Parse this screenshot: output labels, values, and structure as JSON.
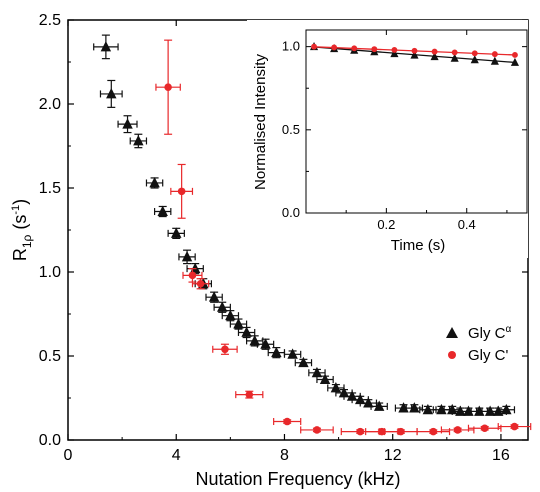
{
  "chart_data": [
    {
      "id": "main",
      "type": "scatter",
      "xlabel": "Nutation Frequency (kHz)",
      "ylabel_main": "R",
      "ylabel_sub": "1ρ",
      "ylabel_unit_open": " (s",
      "ylabel_unit_sup": "-1",
      "ylabel_unit_close": ")",
      "xlim": [
        0,
        17
      ],
      "ylim": [
        0,
        2.5
      ],
      "xticks": [
        0,
        4,
        8,
        12,
        16
      ],
      "xtick_labels": [
        "0",
        "4",
        "8",
        "12",
        "16"
      ],
      "yticks": [
        0.0,
        0.5,
        1.0,
        1.5,
        2.0,
        2.5
      ],
      "ytick_labels": [
        "0.0",
        "0.5",
        "1.0",
        "1.5",
        "2.0",
        "2.5"
      ],
      "legend_position": "lower-right",
      "series": [
        {
          "name": "Gly C",
          "name_sup": "α",
          "color": "#111111",
          "marker": "triangle",
          "points": [
            {
              "x": 1.4,
              "y": 2.34,
              "xerr": 0.45,
              "yerr": 0.07
            },
            {
              "x": 1.6,
              "y": 2.06,
              "xerr": 0.4,
              "yerr": 0.08
            },
            {
              "x": 2.2,
              "y": 1.88,
              "xerr": 0.35,
              "yerr": 0.05
            },
            {
              "x": 2.6,
              "y": 1.78,
              "xerr": 0.3,
              "yerr": 0.04
            },
            {
              "x": 3.2,
              "y": 1.53,
              "xerr": 0.3,
              "yerr": 0.03
            },
            {
              "x": 3.5,
              "y": 1.36,
              "xerr": 0.3,
              "yerr": 0.03
            },
            {
              "x": 4.0,
              "y": 1.23,
              "xerr": 0.3,
              "yerr": 0.03
            },
            {
              "x": 4.4,
              "y": 1.09,
              "xerr": 0.3,
              "yerr": 0.04
            },
            {
              "x": 4.7,
              "y": 1.02,
              "xerr": 0.3,
              "yerr": 0.03
            },
            {
              "x": 5.0,
              "y": 0.93,
              "xerr": 0.3,
              "yerr": 0.03
            },
            {
              "x": 5.4,
              "y": 0.85,
              "xerr": 0.3,
              "yerr": 0.03
            },
            {
              "x": 5.7,
              "y": 0.79,
              "xerr": 0.3,
              "yerr": 0.03
            },
            {
              "x": 6.0,
              "y": 0.74,
              "xerr": 0.3,
              "yerr": 0.03
            },
            {
              "x": 6.3,
              "y": 0.69,
              "xerr": 0.3,
              "yerr": 0.03
            },
            {
              "x": 6.6,
              "y": 0.64,
              "xerr": 0.3,
              "yerr": 0.03
            },
            {
              "x": 6.9,
              "y": 0.59,
              "xerr": 0.3,
              "yerr": 0.03
            },
            {
              "x": 7.3,
              "y": 0.57,
              "xerr": 0.3,
              "yerr": 0.03
            },
            {
              "x": 7.7,
              "y": 0.52,
              "xerr": 0.3,
              "yerr": 0.03
            },
            {
              "x": 8.3,
              "y": 0.51,
              "xerr": 0.3,
              "yerr": 0.02
            },
            {
              "x": 8.7,
              "y": 0.46,
              "xerr": 0.3,
              "yerr": 0.02
            },
            {
              "x": 9.2,
              "y": 0.4,
              "xerr": 0.3,
              "yerr": 0.02
            },
            {
              "x": 9.5,
              "y": 0.36,
              "xerr": 0.3,
              "yerr": 0.02
            },
            {
              "x": 9.9,
              "y": 0.31,
              "xerr": 0.3,
              "yerr": 0.02
            },
            {
              "x": 10.2,
              "y": 0.28,
              "xerr": 0.3,
              "yerr": 0.02
            },
            {
              "x": 10.5,
              "y": 0.26,
              "xerr": 0.3,
              "yerr": 0.02
            },
            {
              "x": 10.8,
              "y": 0.24,
              "xerr": 0.3,
              "yerr": 0.02
            },
            {
              "x": 11.1,
              "y": 0.22,
              "xerr": 0.3,
              "yerr": 0.02
            },
            {
              "x": 11.5,
              "y": 0.2,
              "xerr": 0.3,
              "yerr": 0.02
            },
            {
              "x": 12.4,
              "y": 0.19,
              "xerr": 0.3,
              "yerr": 0.02
            },
            {
              "x": 12.8,
              "y": 0.19,
              "xerr": 0.3,
              "yerr": 0.02
            },
            {
              "x": 13.3,
              "y": 0.18,
              "xerr": 0.3,
              "yerr": 0.02
            },
            {
              "x": 13.8,
              "y": 0.18,
              "xerr": 0.3,
              "yerr": 0.02
            },
            {
              "x": 14.2,
              "y": 0.18,
              "xerr": 0.3,
              "yerr": 0.02
            },
            {
              "x": 14.5,
              "y": 0.17,
              "xerr": 0.3,
              "yerr": 0.02
            },
            {
              "x": 14.8,
              "y": 0.17,
              "xerr": 0.3,
              "yerr": 0.02
            },
            {
              "x": 15.2,
              "y": 0.17,
              "xerr": 0.3,
              "yerr": 0.02
            },
            {
              "x": 15.6,
              "y": 0.17,
              "xerr": 0.3,
              "yerr": 0.02
            },
            {
              "x": 15.9,
              "y": 0.17,
              "xerr": 0.3,
              "yerr": 0.02
            },
            {
              "x": 16.2,
              "y": 0.18,
              "xerr": 0.3,
              "yerr": 0.02
            }
          ]
        },
        {
          "name": "Gly C'",
          "color": "#e8282b",
          "marker": "circle",
          "points": [
            {
              "x": 3.7,
              "y": 2.1,
              "xerr": 0.45,
              "yerr": 0.28
            },
            {
              "x": 4.2,
              "y": 1.48,
              "xerr": 0.4,
              "yerr": 0.16
            },
            {
              "x": 4.6,
              "y": 0.98,
              "xerr": 0.35,
              "yerr": 0.04
            },
            {
              "x": 4.9,
              "y": 0.93,
              "xerr": 0.3,
              "yerr": 0.03
            },
            {
              "x": 5.8,
              "y": 0.54,
              "xerr": 0.45,
              "yerr": 0.03
            },
            {
              "x": 6.7,
              "y": 0.27,
              "xerr": 0.5,
              "yerr": 0.02
            },
            {
              "x": 8.1,
              "y": 0.11,
              "xerr": 0.5,
              "yerr": 0.01
            },
            {
              "x": 9.2,
              "y": 0.06,
              "xerr": 0.6,
              "yerr": 0.01
            },
            {
              "x": 10.8,
              "y": 0.05,
              "xerr": 0.7,
              "yerr": 0.01
            },
            {
              "x": 11.6,
              "y": 0.05,
              "xerr": 0.6,
              "yerr": 0.01
            },
            {
              "x": 12.3,
              "y": 0.05,
              "xerr": 0.6,
              "yerr": 0.01
            },
            {
              "x": 13.5,
              "y": 0.05,
              "xerr": 0.6,
              "yerr": 0.01
            },
            {
              "x": 14.4,
              "y": 0.06,
              "xerr": 0.6,
              "yerr": 0.01
            },
            {
              "x": 15.4,
              "y": 0.07,
              "xerr": 0.6,
              "yerr": 0.01
            },
            {
              "x": 16.5,
              "y": 0.08,
              "xerr": 0.6,
              "yerr": 0.01
            }
          ]
        }
      ]
    },
    {
      "id": "inset",
      "type": "line",
      "xlabel": "Time (s)",
      "ylabel": "Normalised Intensity",
      "xlim": [
        0,
        0.55
      ],
      "ylim": [
        0,
        1.1
      ],
      "xticks": [
        0.2,
        0.4
      ],
      "xtick_labels": [
        "0.2",
        "0.4"
      ],
      "yticks": [
        0.0,
        0.5,
        1.0
      ],
      "ytick_labels": [
        "0.0",
        "0.5",
        "1.0"
      ],
      "series": [
        {
          "color": "#111111",
          "marker": "triangle",
          "x": [
            0.02,
            0.07,
            0.12,
            0.17,
            0.22,
            0.27,
            0.32,
            0.37,
            0.42,
            0.47,
            0.52
          ],
          "y": [
            1.0,
            0.988,
            0.978,
            0.969,
            0.958,
            0.949,
            0.94,
            0.93,
            0.921,
            0.912,
            0.905
          ],
          "fit": [
            [
              0.02,
              0.998
            ],
            [
              0.52,
              0.905
            ]
          ]
        },
        {
          "color": "#e8282b",
          "marker": "circle",
          "x": [
            0.02,
            0.07,
            0.12,
            0.17,
            0.22,
            0.27,
            0.32,
            0.37,
            0.42,
            0.47,
            0.52
          ],
          "y": [
            1.0,
            0.995,
            0.99,
            0.985,
            0.98,
            0.975,
            0.97,
            0.965,
            0.96,
            0.955,
            0.95
          ],
          "fit": [
            [
              0.02,
              0.999
            ],
            [
              0.52,
              0.95
            ]
          ]
        }
      ]
    }
  ]
}
